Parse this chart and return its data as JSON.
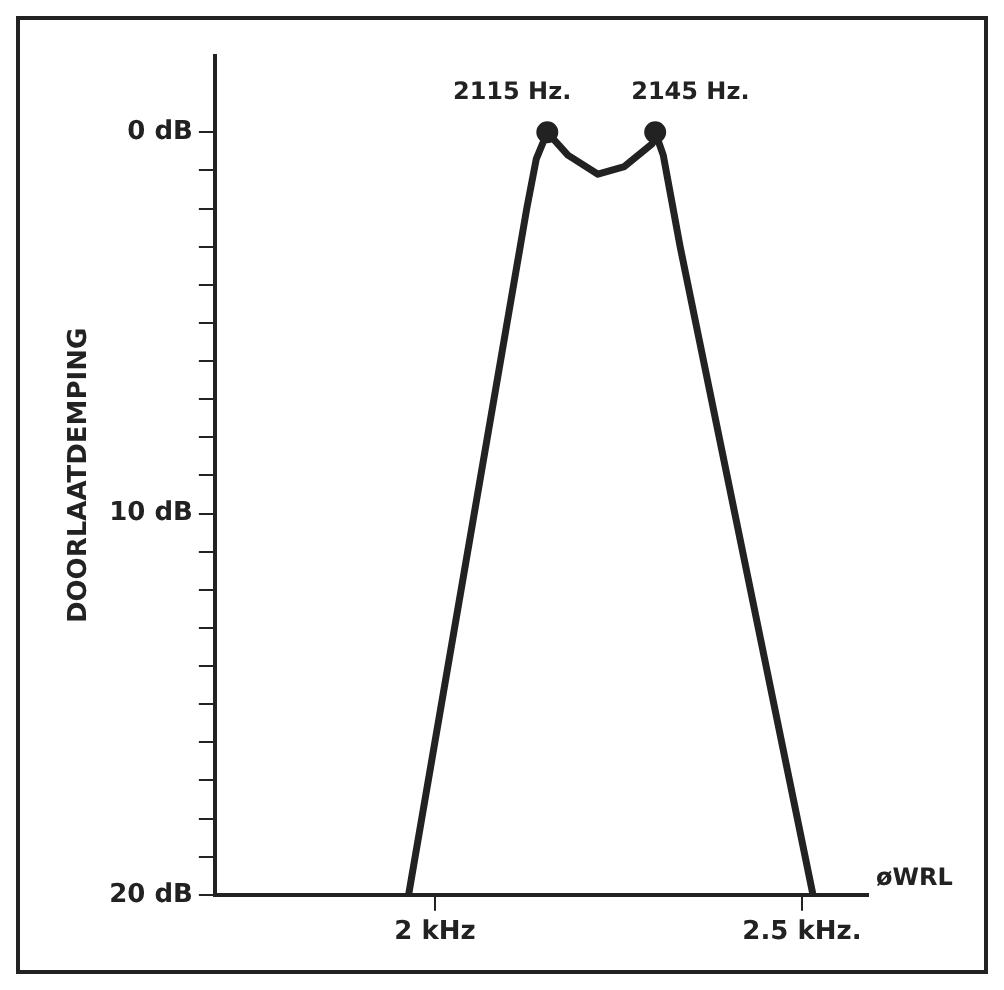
{
  "chart_data": {
    "type": "line",
    "ylabel": "DOORLAATDEMPING",
    "xlim": [
      1.7,
      2.59
    ],
    "ylim": [
      20,
      -2
    ],
    "xticks": [
      {
        "value": 2,
        "label": "2 kHz"
      },
      {
        "value": 2.5,
        "label": "2.5 kHz."
      }
    ],
    "yticks": [
      {
        "value": 0,
        "label": "0 dB"
      },
      {
        "value": 1,
        "label": null
      },
      {
        "value": 2,
        "label": null
      },
      {
        "value": 3,
        "label": null
      },
      {
        "value": 4,
        "label": null
      },
      {
        "value": 5,
        "label": null
      },
      {
        "value": 6,
        "label": null
      },
      {
        "value": 7,
        "label": null
      },
      {
        "value": 8,
        "label": null
      },
      {
        "value": 9,
        "label": null
      },
      {
        "value": 10,
        "label": "10 dB"
      },
      {
        "value": 11,
        "label": null
      },
      {
        "value": 12,
        "label": null
      },
      {
        "value": 13,
        "label": null
      },
      {
        "value": 14,
        "label": null
      },
      {
        "value": 15,
        "label": null
      },
      {
        "value": 16,
        "label": null
      },
      {
        "value": 17,
        "label": null
      },
      {
        "value": 18,
        "label": null
      },
      {
        "value": 19,
        "label": null
      },
      {
        "value": 20,
        "label": "20 dB"
      }
    ],
    "grid": false,
    "legend": false,
    "marker": "none",
    "line_style": "solid",
    "series": [
      {
        "type": "line",
        "color": "#222222",
        "x": [
          1.964,
          2.125,
          2.138,
          2.153,
          2.181,
          2.222,
          2.258,
          2.296,
          2.3,
          2.311,
          2.334,
          2.515
        ],
        "values": [
          20,
          2.0,
          0.7,
          0,
          0.6,
          1.1,
          0.9,
          0.3,
          0,
          0.6,
          3.0,
          20
        ]
      },
      {
        "type": "scatter",
        "marker": "circle",
        "color": "#222222",
        "x": [
          2.153,
          2.3
        ],
        "values": [
          0,
          0
        ]
      }
    ],
    "annotations": [
      {
        "text": "2115 Hz.",
        "x": 2.153,
        "y": 0
      },
      {
        "text": "2145 Hz.",
        "x": 2.3,
        "y": 0
      },
      "øWRL"
    ]
  }
}
